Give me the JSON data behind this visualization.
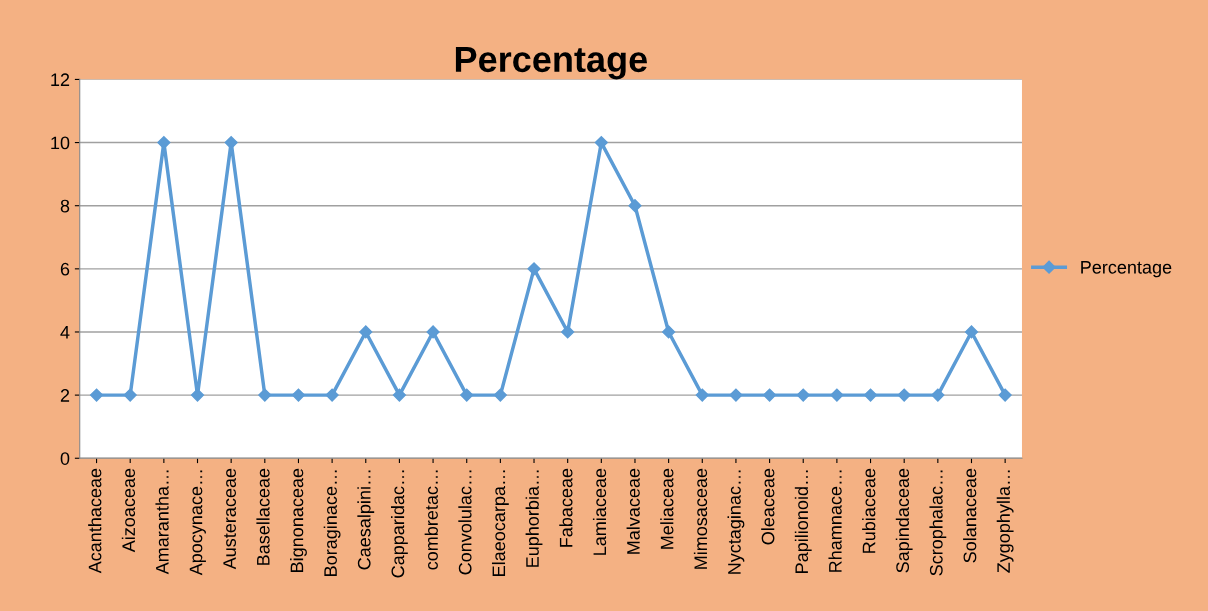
{
  "chart_data": {
    "type": "line",
    "title": "Percentage",
    "categories": [
      "Acanthaceae",
      "Aizoaceae",
      "Amarantha…",
      "Apocynace…",
      "Austeraceae",
      "Basellaceae",
      "Bignonaceae",
      "Boraginace…",
      "Caesalpini…",
      "Capparidac…",
      "combretac…",
      "Convolulac…",
      "Elaeocarpa…",
      "Euphorbia…",
      "Fabaceae",
      "Lamiaceae",
      "Malvaceae",
      "Meliaceae",
      "Mimosaceae",
      "Nyctaginac…",
      "Oleaceae",
      "Papilionoid…",
      "Rhamnace…",
      "Rubiaceae",
      "Sapindaceae",
      "Scrophalac…",
      "Solanaceae",
      "Zygophylla…"
    ],
    "series": [
      {
        "name": "Percentage",
        "color": "#5b9bd5",
        "values": [
          2,
          2,
          10,
          2,
          10,
          2,
          2,
          2,
          4,
          2,
          4,
          2,
          2,
          6,
          4,
          10,
          8,
          4,
          2,
          2,
          2,
          2,
          2,
          2,
          2,
          2,
          4,
          2
        ]
      }
    ],
    "ylim": [
      0,
      12
    ],
    "yticks": [
      0,
      2,
      4,
      6,
      8,
      10,
      12
    ],
    "grid": "y",
    "legend": "right",
    "marker": "diamond",
    "line_style": "solid"
  }
}
